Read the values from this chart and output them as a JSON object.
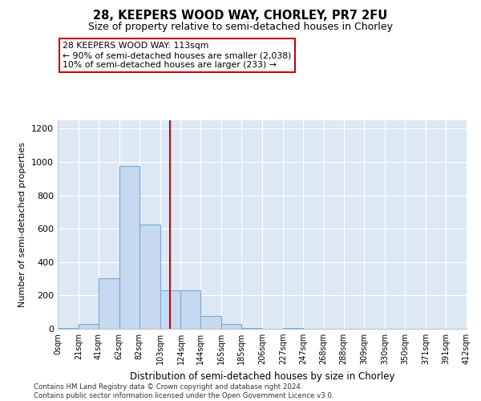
{
  "title_line1": "28, KEEPERS WOOD WAY, CHORLEY, PR7 2FU",
  "title_line2": "Size of property relative to semi-detached houses in Chorley",
  "xlabel": "Distribution of semi-detached houses by size in Chorley",
  "ylabel": "Number of semi-detached properties",
  "footnote": "Contains HM Land Registry data © Crown copyright and database right 2024.\nContains public sector information licensed under the Open Government Licence v3.0.",
  "annotation_title": "28 KEEPERS WOOD WAY: 113sqm",
  "annotation_line2": "← 90% of semi-detached houses are smaller (2,038)",
  "annotation_line3": "10% of semi-detached houses are larger (233) →",
  "property_size": 113,
  "bar_color": "#c6d9f0",
  "bar_edge_color": "#7aabcf",
  "vline_color": "#cc0000",
  "annotation_box_color": "#cc0000",
  "background_color": "#dde8f5",
  "bin_edges": [
    0,
    21,
    41,
    62,
    82,
    103,
    124,
    144,
    165,
    185,
    206,
    227,
    247,
    268,
    288,
    309,
    330,
    350,
    371,
    391,
    412
  ],
  "bin_counts": [
    5,
    30,
    305,
    975,
    625,
    230,
    230,
    75,
    30,
    5,
    0,
    5,
    0,
    0,
    0,
    0,
    0,
    0,
    0,
    0
  ],
  "ylim": [
    0,
    1250
  ],
  "yticks": [
    0,
    200,
    400,
    600,
    800,
    1000,
    1200
  ],
  "tick_labels": [
    "0sqm",
    "21sqm",
    "41sqm",
    "62sqm",
    "82sqm",
    "103sqm",
    "124sqm",
    "144sqm",
    "165sqm",
    "185sqm",
    "206sqm",
    "227sqm",
    "247sqm",
    "268sqm",
    "288sqm",
    "309sqm",
    "330sqm",
    "350sqm",
    "371sqm",
    "391sqm",
    "412sqm"
  ]
}
